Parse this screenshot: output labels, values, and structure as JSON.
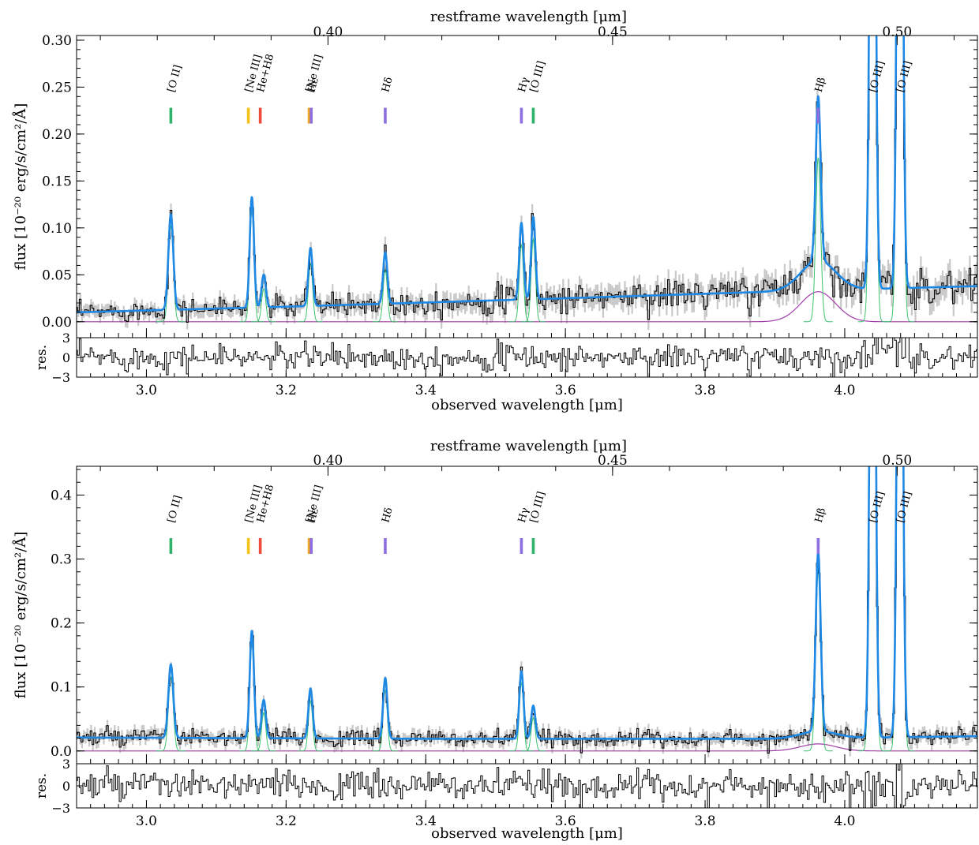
{
  "chart_data": [
    {
      "type": "line",
      "panel": "top",
      "top_axis_label": "restframe wavelength [μm]",
      "top_ticks": [
        "0.40",
        "0.45",
        "0.50"
      ],
      "top_tick_values_um": [
        0.4,
        0.45,
        0.5
      ],
      "xlabel": "observed wavelength [μm]",
      "ylabel": "flux [10⁻²⁰ erg/s/cm²/Å]",
      "xlim": [
        2.9,
        4.19
      ],
      "ylim": [
        -0.017,
        0.305
      ],
      "x_ticks": [
        "3.0",
        "3.2",
        "3.4",
        "3.6",
        "3.8",
        "4.0"
      ],
      "y_ticks": [
        "0.00",
        "0.05",
        "0.10",
        "0.15",
        "0.20",
        "0.25",
        "0.30"
      ],
      "residual_label": "res.",
      "residual_ylim": [
        -3,
        3
      ],
      "residual_ticks": [
        "3",
        "0",
        "−3"
      ],
      "continuum": [
        [
          2.9,
          0.01
        ],
        [
          3.2,
          0.016
        ],
        [
          3.6,
          0.025
        ],
        [
          3.85,
          0.031
        ],
        [
          4.19,
          0.038
        ]
      ],
      "narrow_lines": [
        {
          "x": 3.035,
          "peak": 0.102,
          "sigma": 0.0035
        },
        {
          "x": 3.151,
          "peak": 0.118,
          "sigma": 0.003
        },
        {
          "x": 3.168,
          "peak": 0.035,
          "sigma": 0.003
        },
        {
          "x": 3.235,
          "peak": 0.062,
          "sigma": 0.003
        },
        {
          "x": 3.342,
          "peak": 0.055,
          "sigma": 0.003
        },
        {
          "x": 3.537,
          "peak": 0.082,
          "sigma": 0.003
        },
        {
          "x": 3.554,
          "peak": 0.088,
          "sigma": 0.003
        },
        {
          "x": 3.962,
          "peak": 0.175,
          "sigma": 0.0035
        },
        {
          "x": 4.04,
          "peak": 0.9,
          "sigma": 0.0035
        },
        {
          "x": 4.079,
          "peak": 0.9,
          "sigma": 0.0035
        }
      ],
      "broad_line": {
        "x": 3.962,
        "peak": 0.032,
        "sigma": 0.025
      },
      "line_markers": [
        {
          "label": "[O II]",
          "x": 3.035,
          "color": "#2fb36b"
        },
        {
          "label": "[Ne III]",
          "x": 3.146,
          "color": "#f5c21b"
        },
        {
          "label": "He+H8",
          "x": 3.163,
          "color": "#ee4b3a"
        },
        {
          "label": "[Ne III]",
          "x": 3.233,
          "color": "#f5a623"
        },
        {
          "label": "Hε",
          "x": 3.236,
          "color": "#8c6fe0"
        },
        {
          "label": "Hδ",
          "x": 3.342,
          "color": "#8c6fe0"
        },
        {
          "label": "Hγ",
          "x": 3.537,
          "color": "#8c6fe0"
        },
        {
          "label": "[O III]",
          "x": 3.554,
          "color": "#2fb36b"
        },
        {
          "label": "Hβ",
          "x": 3.962,
          "color": "#8c6fe0"
        },
        {
          "label": "[O III]",
          "x": 4.04,
          "color": null
        },
        {
          "label": "[O III]",
          "x": 4.079,
          "color": null
        }
      ],
      "colors": {
        "model": "#1e88e5",
        "narrow": "#3ec26e",
        "broad": "#a13aa8",
        "data": "#000000",
        "error": "#c8c8c8"
      }
    },
    {
      "type": "line",
      "panel": "bottom",
      "top_axis_label": "restframe wavelength [μm]",
      "top_ticks": [
        "0.40",
        "0.45",
        "0.50"
      ],
      "top_tick_values_um": [
        0.4,
        0.45,
        0.5
      ],
      "xlabel": "observed wavelength [μm]",
      "ylabel": "flux [10⁻²⁰ erg/s/cm²/Å]",
      "xlim": [
        2.9,
        4.19
      ],
      "ylim": [
        -0.02,
        0.445
      ],
      "x_ticks": [
        "3.0",
        "3.2",
        "3.4",
        "3.6",
        "3.8",
        "4.0"
      ],
      "y_ticks": [
        "0.0",
        "0.1",
        "0.2",
        "0.3",
        "0.4"
      ],
      "residual_label": "res.",
      "residual_ylim": [
        -3,
        3
      ],
      "residual_ticks": [
        "3",
        "0",
        "−3"
      ],
      "continuum": [
        [
          2.9,
          0.021
        ],
        [
          3.4,
          0.019
        ],
        [
          3.9,
          0.019
        ],
        [
          4.19,
          0.023
        ]
      ],
      "narrow_lines": [
        {
          "x": 3.035,
          "peak": 0.115,
          "sigma": 0.0035
        },
        {
          "x": 3.151,
          "peak": 0.168,
          "sigma": 0.003
        },
        {
          "x": 3.168,
          "peak": 0.06,
          "sigma": 0.003
        },
        {
          "x": 3.235,
          "peak": 0.078,
          "sigma": 0.003
        },
        {
          "x": 3.342,
          "peak": 0.095,
          "sigma": 0.003
        },
        {
          "x": 3.537,
          "peak": 0.106,
          "sigma": 0.003
        },
        {
          "x": 3.554,
          "peak": 0.052,
          "sigma": 0.003
        },
        {
          "x": 3.962,
          "peak": 0.28,
          "sigma": 0.0035
        },
        {
          "x": 4.04,
          "peak": 1.2,
          "sigma": 0.0035
        },
        {
          "x": 4.079,
          "peak": 1.2,
          "sigma": 0.0035
        }
      ],
      "broad_line": {
        "x": 3.962,
        "peak": 0.011,
        "sigma": 0.025
      },
      "line_markers": [
        {
          "label": "[O II]",
          "x": 3.035,
          "color": "#2fb36b"
        },
        {
          "label": "[Ne III]",
          "x": 3.146,
          "color": "#f5c21b"
        },
        {
          "label": "He+H8",
          "x": 3.163,
          "color": "#ee4b3a"
        },
        {
          "label": "[Ne III]",
          "x": 3.233,
          "color": "#f5a623"
        },
        {
          "label": "Hε",
          "x": 3.236,
          "color": "#8c6fe0"
        },
        {
          "label": "Hδ",
          "x": 3.342,
          "color": "#8c6fe0"
        },
        {
          "label": "Hγ",
          "x": 3.537,
          "color": "#8c6fe0"
        },
        {
          "label": "[O III]",
          "x": 3.554,
          "color": "#2fb36b"
        },
        {
          "label": "Hβ",
          "x": 3.962,
          "color": "#8c6fe0"
        },
        {
          "label": "[O III]",
          "x": 4.04,
          "color": null
        },
        {
          "label": "[O III]",
          "x": 4.079,
          "color": null
        }
      ],
      "colors": {
        "model": "#1e88e5",
        "narrow": "#3ec26e",
        "broad": "#a13aa8",
        "data": "#000000",
        "error": "#c8c8c8"
      }
    }
  ]
}
